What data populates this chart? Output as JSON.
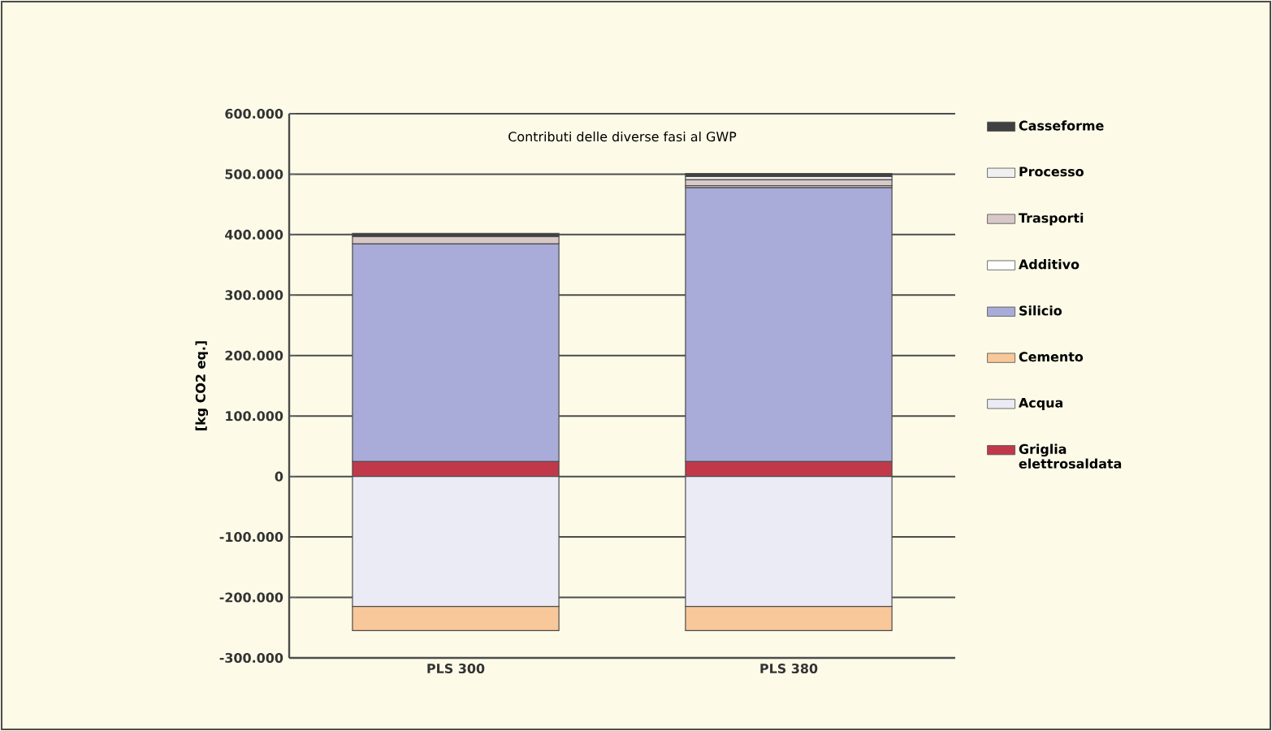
{
  "chart_data": {
    "type": "bar",
    "stacked": true,
    "title": "Contributi delle diverse fasi al GWP",
    "ylabel": "[kg CO2 eq.]",
    "categories": [
      "PLS 300",
      "PLS 380"
    ],
    "series": [
      {
        "name": "Griglia elettrosaldata",
        "color": "#c0394b",
        "values": [
          25000,
          25000
        ]
      },
      {
        "name": "Acqua",
        "color": "#ebebf5",
        "values": [
          -215000,
          -215000
        ]
      },
      {
        "name": "Cemento",
        "color": "#f8c89a",
        "values": [
          -40000,
          -40000
        ]
      },
      {
        "name": "Silicio",
        "color": "#a9acd8",
        "values": [
          360000,
          453000
        ]
      },
      {
        "name": "Additivo",
        "color": "#ffffff",
        "values": [
          null,
          3000
        ]
      },
      {
        "name": "Trasporti",
        "color": "#d8c8c8",
        "values": [
          12000,
          10000
        ]
      },
      {
        "name": "Processo",
        "color": "#f0f0f0",
        "values": [
          null,
          5000
        ]
      },
      {
        "name": "Casseforme",
        "color": "#404040",
        "values": [
          5000,
          5000
        ]
      }
    ],
    "ylim": [
      -300000,
      600000
    ],
    "yticks": [
      {
        "value": -300000,
        "label": "-300.000"
      },
      {
        "value": -200000,
        "label": "-200.000"
      },
      {
        "value": -100000,
        "label": "-100.000"
      },
      0,
      {
        "value": 100000,
        "label": "100.000"
      },
      {
        "value": 200000,
        "label": "200.000"
      },
      {
        "value": 300000,
        "label": "300.000"
      },
      {
        "value": 400000,
        "label": "400.000"
      },
      {
        "value": 500000,
        "label": "500.000"
      },
      {
        "value": 600000,
        "label": "600.000"
      }
    ],
    "grid": "y",
    "legend": "right"
  }
}
